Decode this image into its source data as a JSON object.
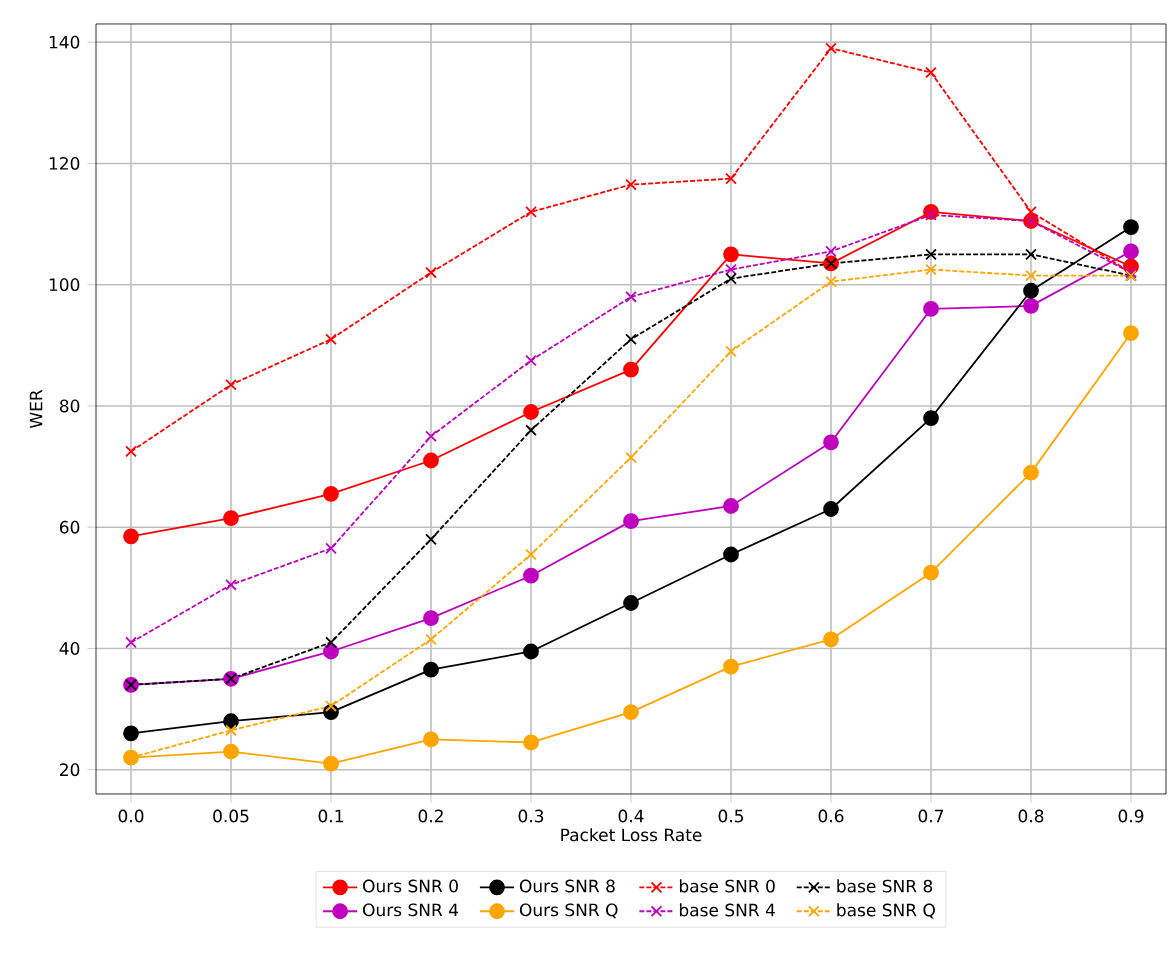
{
  "chart_data": {
    "type": "line",
    "xlabel": "Packet Loss Rate",
    "ylabel": "WER",
    "categories": [
      "0.0",
      "0.05",
      "0.1",
      "0.2",
      "0.3",
      "0.4",
      "0.5",
      "0.6",
      "0.7",
      "0.8",
      "0.9"
    ],
    "ylim": [
      16,
      143
    ],
    "yticks": [
      20,
      40,
      60,
      80,
      100,
      120,
      140
    ],
    "grid": true,
    "legend": "bottom",
    "series": [
      {
        "name": "Ours SNR 0",
        "color": "#ff0000",
        "marker": "circle",
        "line_style": "solid",
        "values": [
          58.5,
          61.5,
          65.5,
          71,
          79,
          86,
          105,
          103.5,
          112,
          110.5,
          103
        ]
      },
      {
        "name": "Ours SNR 4",
        "color": "#bf00bf",
        "marker": "circle",
        "line_style": "solid",
        "values": [
          34,
          35,
          39.5,
          45,
          52,
          61,
          63.5,
          74,
          96,
          96.5,
          105.5
        ]
      },
      {
        "name": "Ours SNR 8",
        "color": "#000000",
        "marker": "circle",
        "line_style": "solid",
        "values": [
          26,
          28,
          29.5,
          36.5,
          39.5,
          47.5,
          55.5,
          63,
          78,
          99,
          109.5
        ]
      },
      {
        "name": "Ours SNR Q",
        "color": "#ffa500",
        "marker": "circle",
        "line_style": "solid",
        "values": [
          22,
          23,
          21,
          25,
          24.5,
          29.5,
          37,
          41.5,
          52.5,
          69,
          92
        ]
      },
      {
        "name": "base SNR 0",
        "color": "#ff0000",
        "marker": "cross",
        "line_style": "dashed",
        "values": [
          72.5,
          83.5,
          91,
          102,
          112,
          116.5,
          117.5,
          139,
          135,
          112,
          102
        ]
      },
      {
        "name": "base SNR 4",
        "color": "#bf00bf",
        "marker": "cross",
        "line_style": "dashed",
        "values": [
          41,
          50.5,
          56.5,
          75,
          87.5,
          98,
          102.5,
          105.5,
          111.5,
          110.5,
          102
        ]
      },
      {
        "name": "base SNR 8",
        "color": "#000000",
        "marker": "cross",
        "line_style": "dashed",
        "values": [
          34,
          35,
          41,
          58,
          76,
          91,
          101,
          103.5,
          105,
          105,
          101.5
        ]
      },
      {
        "name": "base SNR Q",
        "color": "#ffa500",
        "marker": "cross",
        "line_style": "dashed",
        "values": [
          22,
          26.5,
          30.5,
          41.5,
          55.5,
          71.5,
          89,
          100.5,
          102.5,
          101.5,
          101.5
        ]
      }
    ]
  }
}
